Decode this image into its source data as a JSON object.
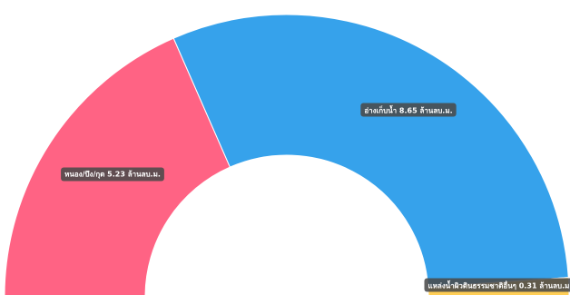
{
  "chart_data": {
    "type": "pie",
    "subtype": "half-donut",
    "title": "",
    "series": [
      {
        "name": "หนอง/บึง/กุด",
        "value": 5.23,
        "label": "หนอง/บึง/กุด 5.23 ล้านลบ.ม.",
        "color": "#ff6384"
      },
      {
        "name": "อ่างเก็บน้ำ",
        "value": 8.65,
        "label": "อ่างเก็บน้ำ 8.65 ล้านลบ.ม.",
        "color": "#36a2eb"
      },
      {
        "name": "แหล่งน้ำผิวดินธรรมชาติอื่นๆ",
        "value": 0.31,
        "label": "แหล่งน้ำผิวดินธรรมชาติอื่นๆ 0.31 ล้านลบ.ม.",
        "color": "#ffce56"
      }
    ]
  }
}
